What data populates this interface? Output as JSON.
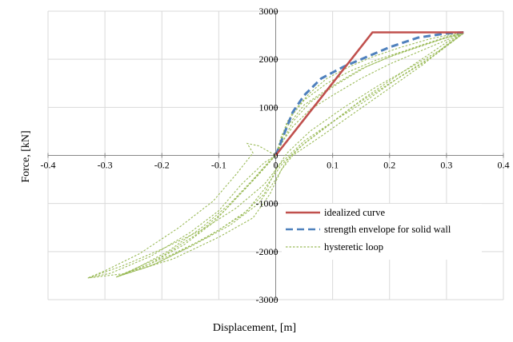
{
  "chart_data": {
    "type": "line",
    "xlabel": "Displacement, [m]",
    "ylabel": "Force, [kN]",
    "xlim": [
      -0.4,
      0.4
    ],
    "ylim": [
      -3000,
      3000
    ],
    "xticks": [
      -0.4,
      -0.3,
      -0.2,
      -0.1,
      0,
      0.1,
      0.2,
      0.3,
      0.4
    ],
    "yticks": [
      -3000,
      -2000,
      -1000,
      0,
      1000,
      2000,
      3000
    ],
    "xtick_labels": [
      "-0.4",
      "-0.3",
      "-0.2",
      "-0.1",
      "0",
      "0.1",
      "0.2",
      "0.3",
      "0.4"
    ],
    "ytick_labels": [
      "-3000",
      "-2000",
      "-1000",
      "0",
      "1000",
      "2000",
      "3000"
    ],
    "grid": true,
    "legend_position": "lower-right",
    "series": [
      {
        "name": "idealized curve",
        "color": "#c0504d",
        "style": "solid",
        "points": [
          [
            0,
            0
          ],
          [
            0.17,
            2560
          ],
          [
            0.33,
            2560
          ]
        ]
      },
      {
        "name": "strength envelope for solid wall",
        "color": "#4f81bd",
        "style": "dashed",
        "points": [
          [
            0,
            0
          ],
          [
            0.01,
            300
          ],
          [
            0.02,
            600
          ],
          [
            0.03,
            900
          ],
          [
            0.05,
            1250
          ],
          [
            0.08,
            1600
          ],
          [
            0.12,
            1850
          ],
          [
            0.15,
            2000
          ],
          [
            0.2,
            2250
          ],
          [
            0.25,
            2450
          ],
          [
            0.3,
            2540
          ],
          [
            0.33,
            2560
          ]
        ]
      },
      {
        "name": "hysteretic loop",
        "color": "#9bbb59",
        "style": "dotted",
        "loops": [
          [
            [
              0,
              0
            ],
            [
              0.01,
              400
            ],
            [
              0.03,
              900
            ],
            [
              0.06,
              1300
            ],
            [
              0.09,
              1600
            ],
            [
              0.13,
              1850
            ],
            [
              0.17,
              2050
            ],
            [
              0.22,
              2250
            ],
            [
              0.27,
              2420
            ],
            [
              0.31,
              2520
            ],
            [
              0.33,
              2560
            ],
            [
              0.3,
              2300
            ],
            [
              0.26,
              1900
            ],
            [
              0.2,
              1400
            ],
            [
              0.14,
              900
            ],
            [
              0.08,
              400
            ],
            [
              0.03,
              0
            ],
            [
              0.01,
              -300
            ],
            [
              -0.01,
              -800
            ],
            [
              -0.04,
              -1300
            ],
            [
              -0.1,
              -1700
            ],
            [
              -0.18,
              -2150
            ],
            [
              -0.26,
              -2450
            ],
            [
              -0.33,
              -2550
            ],
            [
              -0.29,
              -2450
            ],
            [
              -0.22,
              -2100
            ],
            [
              -0.15,
              -1600
            ],
            [
              -0.1,
              -1150
            ],
            [
              -0.06,
              -600
            ],
            [
              -0.02,
              -150
            ],
            [
              0,
              0
            ]
          ],
          [
            [
              0,
              0
            ],
            [
              0.02,
              700
            ],
            [
              0.05,
              1150
            ],
            [
              0.09,
              1500
            ],
            [
              0.13,
              1750
            ],
            [
              0.18,
              2000
            ],
            [
              0.22,
              2150
            ],
            [
              0.27,
              2350
            ],
            [
              0.31,
              2500
            ],
            [
              0.33,
              2540
            ],
            [
              0.28,
              2100
            ],
            [
              0.22,
              1650
            ],
            [
              0.16,
              1150
            ],
            [
              0.1,
              700
            ],
            [
              0.05,
              250
            ],
            [
              0.02,
              -100
            ],
            [
              0,
              -500
            ],
            [
              -0.03,
              -1000
            ],
            [
              -0.08,
              -1450
            ],
            [
              -0.15,
              -1900
            ],
            [
              -0.22,
              -2300
            ],
            [
              -0.28,
              -2530
            ],
            [
              -0.25,
              -2380
            ],
            [
              -0.19,
              -2000
            ],
            [
              -0.13,
              -1500
            ],
            [
              -0.08,
              -1000
            ],
            [
              -0.04,
              -500
            ],
            [
              -0.01,
              -100
            ],
            [
              0,
              0
            ]
          ],
          [
            [
              0,
              0
            ],
            [
              0.02,
              600
            ],
            [
              0.05,
              1050
            ],
            [
              0.1,
              1450
            ],
            [
              0.15,
              1800
            ],
            [
              0.2,
              2050
            ],
            [
              0.25,
              2250
            ],
            [
              0.3,
              2450
            ],
            [
              0.33,
              2540
            ],
            [
              0.29,
              2200
            ],
            [
              0.24,
              1850
            ],
            [
              0.18,
              1450
            ],
            [
              0.12,
              1000
            ],
            [
              0.06,
              500
            ],
            [
              0.02,
              50
            ],
            [
              0,
              -300
            ],
            [
              -0.02,
              -800
            ],
            [
              -0.06,
              -1250
            ],
            [
              -0.12,
              -1700
            ],
            [
              -0.18,
              -2050
            ],
            [
              -0.24,
              -2350
            ],
            [
              -0.28,
              -2530
            ],
            [
              -0.22,
              -2250
            ],
            [
              -0.16,
              -1850
            ],
            [
              -0.11,
              -1400
            ],
            [
              -0.07,
              -900
            ],
            [
              -0.03,
              -400
            ],
            [
              0,
              0
            ]
          ],
          [
            [
              0,
              0
            ],
            [
              0.03,
              700
            ],
            [
              0.06,
              1100
            ],
            [
              0.11,
              1500
            ],
            [
              0.16,
              1850
            ],
            [
              0.21,
              2100
            ],
            [
              0.26,
              2300
            ],
            [
              0.3,
              2450
            ],
            [
              0.33,
              2540
            ],
            [
              0.27,
              2000
            ],
            [
              0.2,
              1500
            ],
            [
              0.14,
              1050
            ],
            [
              0.09,
              600
            ],
            [
              0.04,
              150
            ],
            [
              0.01,
              -200
            ],
            [
              -0.02,
              -700
            ],
            [
              -0.05,
              -1150
            ],
            [
              -0.1,
              -1550
            ],
            [
              -0.16,
              -1950
            ],
            [
              -0.21,
              -2250
            ],
            [
              -0.26,
              -2450
            ],
            [
              -0.28,
              -2530
            ],
            [
              -0.2,
              -2100
            ],
            [
              -0.14,
              -1650
            ],
            [
              -0.09,
              -1150
            ],
            [
              -0.05,
              -650
            ],
            [
              -0.02,
              -250
            ],
            [
              0,
              0
            ]
          ],
          [
            [
              0,
              0
            ],
            [
              0.01,
              250
            ],
            [
              0.03,
              600
            ],
            [
              0.06,
              950
            ],
            [
              0.1,
              1250
            ],
            [
              0.15,
              1600
            ],
            [
              0.2,
              1900
            ],
            [
              0.25,
              2150
            ],
            [
              0.3,
              2400
            ],
            [
              0.33,
              2550
            ],
            [
              0.3,
              2350
            ],
            [
              0.25,
              1950
            ],
            [
              0.2,
              1550
            ],
            [
              0.15,
              1150
            ],
            [
              0.1,
              700
            ],
            [
              0.05,
              300
            ],
            [
              0.01,
              -150
            ],
            [
              -0.02,
              -600
            ],
            [
              -0.07,
              -1100
            ],
            [
              -0.13,
              -1550
            ],
            [
              -0.2,
              -1950
            ],
            [
              -0.27,
              -2300
            ],
            [
              -0.33,
              -2550
            ],
            [
              -0.3,
              -2400
            ],
            [
              -0.24,
              -2050
            ],
            [
              -0.17,
              -1500
            ],
            [
              -0.11,
              -950
            ],
            [
              -0.07,
              -400
            ],
            [
              -0.04,
              50
            ],
            [
              -0.05,
              250
            ],
            [
              -0.03,
              200
            ],
            [
              0,
              0
            ]
          ]
        ]
      }
    ]
  }
}
